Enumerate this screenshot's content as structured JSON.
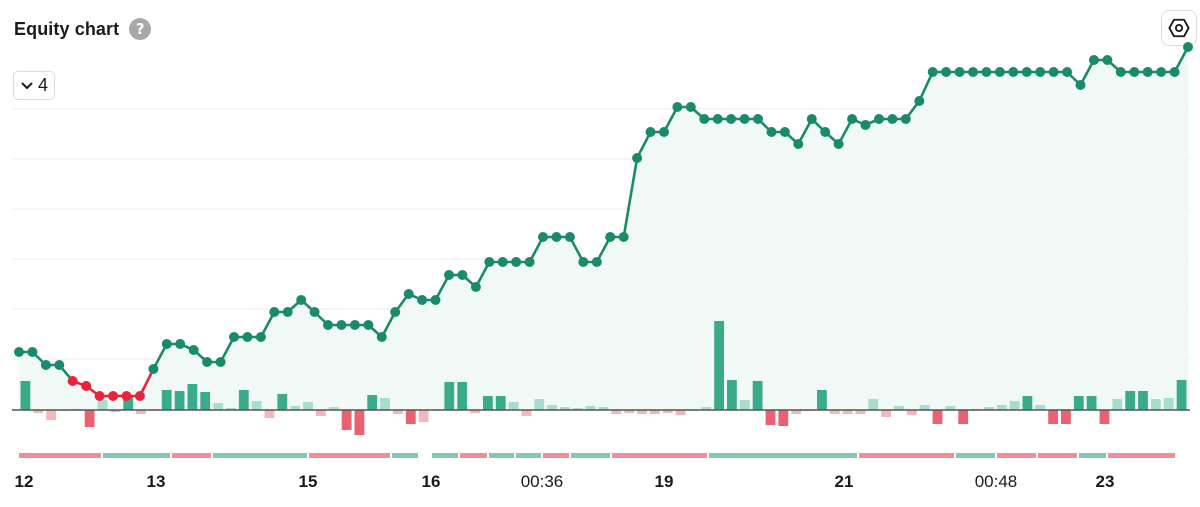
{
  "header": {
    "title": "Equity chart",
    "help_symbol": "?",
    "help_icon": "question-circle-icon",
    "settings_icon": "gear-hexagon-icon"
  },
  "controls": {
    "dropdown_value": "4",
    "dropdown_icon": "chevron-down-icon"
  },
  "colors": {
    "positive": "#1b8a6b",
    "negative": "#e8233a",
    "bar_dark_green": "#3aab8a",
    "bar_light_green": "#a8dccc",
    "bar_dark_red": "#ea6272",
    "bar_light_red": "#f5b5bc",
    "area_fill": "#f1f9f7",
    "grid": "#ececec"
  },
  "chart_data": {
    "type": "line",
    "title": "Equity chart",
    "grid": true,
    "x_ticks": [
      {
        "label": "12",
        "bold": true
      },
      {
        "label": "13",
        "bold": true
      },
      {
        "label": "15",
        "bold": true
      },
      {
        "label": "16",
        "bold": true
      },
      {
        "label": "00:36",
        "bold": false
      },
      {
        "label": "19",
        "bold": true
      },
      {
        "label": "21",
        "bold": true
      },
      {
        "label": "00:48",
        "bold": false
      },
      {
        "label": "23",
        "bold": true
      }
    ],
    "equity": [
      29,
      29,
      16,
      16,
      0,
      -5,
      -15,
      -15,
      -15,
      -15,
      12,
      37,
      37,
      31,
      19,
      19,
      44,
      44,
      44,
      69,
      69,
      81,
      69,
      56,
      56,
      56,
      56,
      44,
      69,
      87,
      81,
      81,
      106,
      106,
      94,
      119,
      119,
      119,
      119,
      144,
      144,
      144,
      119,
      119,
      144,
      144,
      223,
      249,
      249,
      274,
      274,
      262,
      262,
      262,
      262,
      262,
      249,
      249,
      237,
      262,
      249,
      237,
      262,
      256,
      262,
      262,
      262,
      280,
      309,
      309,
      309,
      309,
      309,
      309,
      309,
      309,
      309,
      309,
      309,
      296,
      321,
      321,
      309,
      309,
      309,
      309,
      309,
      334
    ],
    "equity_unit": "relative scale (no y-axis labels shown)",
    "trade_results": [
      29,
      -3,
      -10,
      0,
      1,
      -17,
      10,
      -2,
      13,
      -4,
      -1,
      20,
      19,
      26,
      18,
      7,
      2,
      20,
      9,
      -8,
      16,
      4,
      8,
      -6,
      3,
      -20,
      -25,
      15,
      12,
      -4,
      -14,
      -12,
      0,
      28,
      28,
      -3,
      14,
      14,
      8,
      -6,
      11,
      5,
      3,
      2,
      4,
      3,
      -4,
      -3,
      -4,
      -4,
      -3,
      -5,
      0,
      3,
      89,
      30,
      10,
      29,
      -15,
      -16,
      -4,
      -1,
      20,
      -4,
      -4,
      -4,
      11,
      -7,
      4,
      -5,
      5,
      -14,
      4,
      -14,
      1,
      3,
      5,
      9,
      14,
      5,
      -14,
      -14,
      14,
      14,
      -14,
      11,
      19,
      19,
      11,
      12,
      30
    ],
    "trade_results_unit": "relative scale",
    "sessions": [
      {
        "result": "loss"
      },
      {
        "result": "win"
      },
      {
        "result": "loss"
      },
      {
        "result": "win"
      },
      {
        "result": "loss"
      },
      {
        "result": "win"
      },
      {
        "result": "win"
      },
      {
        "result": "loss"
      },
      {
        "result": "win"
      },
      {
        "result": "win"
      },
      {
        "result": "loss"
      },
      {
        "result": "win"
      },
      {
        "result": "loss"
      },
      {
        "result": "win"
      },
      {
        "result": "loss"
      },
      {
        "result": "win"
      },
      {
        "result": "loss"
      },
      {
        "result": "loss"
      },
      {
        "result": "win"
      },
      {
        "result": "loss"
      }
    ]
  }
}
